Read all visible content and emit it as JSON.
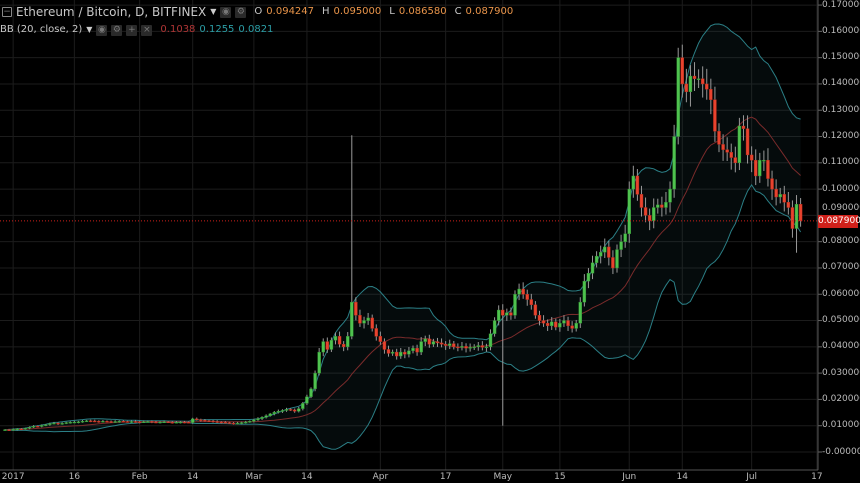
{
  "header": {
    "title": "Ethereum / Bitcoin, D, BITFINEX",
    "ohlc": {
      "o_label": "O",
      "o": "0.094247",
      "h_label": "H",
      "h": "0.095000",
      "l_label": "L",
      "l": "0.086580",
      "c_label": "C",
      "c": "0.087900"
    },
    "indicator": {
      "label": "BB (20, close, 2)",
      "basis": "0.1038",
      "upper": "0.1255",
      "lower": "0.0821"
    }
  },
  "colors": {
    "up": "#4fc24f",
    "down": "#e8432e",
    "bb_band": "#2b7f86",
    "bb_basis": "#7a2b2b",
    "price_label": "#d0201a",
    "grid": "#1c1c1c"
  },
  "chart_data": {
    "type": "candlestick",
    "title": "Ethereum / Bitcoin, D, BITFINEX",
    "ylim": [
      -0.003,
      0.172
    ],
    "yticks": [
      "0.170000",
      "0.160000",
      "0.150000",
      "0.140000",
      "0.130000",
      "0.120000",
      "0.110000",
      "0.100000",
      "0.090000",
      "0.080000",
      "0.070000",
      "0.060000",
      "0.050000",
      "0.040000",
      "0.030000",
      "0.020000",
      "0.010000",
      "-0.000000"
    ],
    "xticks": [
      "2017",
      "16",
      "Feb",
      "14",
      "Mar",
      "14",
      "Apr",
      "17",
      "May",
      "15",
      "Jun",
      "14",
      "Jul",
      "17"
    ],
    "first_open": 0.0084,
    "closes": [
      0.0085,
      0.0083,
      0.0086,
      0.0088,
      0.0087,
      0.009,
      0.0094,
      0.0098,
      0.0097,
      0.0101,
      0.0104,
      0.0108,
      0.011,
      0.0107,
      0.0109,
      0.0112,
      0.0113,
      0.0114,
      0.0115,
      0.0117,
      0.0119,
      0.0118,
      0.0117,
      0.0116,
      0.0117,
      0.0116,
      0.0115,
      0.0116,
      0.0117,
      0.0116,
      0.0115,
      0.0116,
      0.0115,
      0.0114,
      0.0115,
      0.0116,
      0.0114,
      0.0113,
      0.0114,
      0.0115,
      0.0113,
      0.0112,
      0.0113,
      0.0114,
      0.0113,
      0.0112,
      0.0126,
      0.0123,
      0.0121,
      0.0119,
      0.0118,
      0.0116,
      0.0114,
      0.0113,
      0.0112,
      0.011,
      0.0108,
      0.011,
      0.0112,
      0.0114,
      0.0117,
      0.0122,
      0.0127,
      0.0132,
      0.0138,
      0.0145,
      0.0151,
      0.0155,
      0.0158,
      0.0162,
      0.016,
      0.0155,
      0.0165,
      0.0185,
      0.021,
      0.024,
      0.03,
      0.038,
      0.042,
      0.039,
      0.0425,
      0.044,
      0.041,
      0.04,
      0.044,
      0.057,
      0.052,
      0.049,
      0.05,
      0.051,
      0.047,
      0.044,
      0.042,
      0.039,
      0.0375,
      0.038,
      0.0365,
      0.038,
      0.0372,
      0.0385,
      0.0395,
      0.038,
      0.042,
      0.043,
      0.041,
      0.042,
      0.0415,
      0.041,
      0.0405,
      0.0412,
      0.04,
      0.0398,
      0.0402,
      0.0395,
      0.0398,
      0.04,
      0.0405,
      0.0398,
      0.04,
      0.045,
      0.05,
      0.054,
      0.052,
      0.053,
      0.052,
      0.06,
      0.062,
      0.06,
      0.058,
      0.056,
      0.052,
      0.05,
      0.049,
      0.048,
      0.0495,
      0.0475,
      0.049,
      0.05,
      0.048,
      0.047,
      0.049,
      0.057,
      0.065,
      0.068,
      0.072,
      0.0745,
      0.076,
      0.078,
      0.074,
      0.07,
      0.077,
      0.08,
      0.083,
      0.1,
      0.105,
      0.098,
      0.093,
      0.09,
      0.088,
      0.093,
      0.094,
      0.093,
      0.095,
      0.1,
      0.12,
      0.15,
      0.14,
      0.137,
      0.143,
      0.142,
      0.142,
      0.14,
      0.138,
      0.134,
      0.122,
      0.117,
      0.115,
      0.114,
      0.112,
      0.11,
      0.124,
      0.123,
      0.113,
      0.111,
      0.105,
      0.111,
      0.111,
      0.104,
      0.1,
      0.097,
      0.098,
      0.095,
      0.093,
      0.085,
      0.094247,
      0.0879
    ],
    "wick_extremes": [
      {
        "candle": 85,
        "high": 0.1205
      },
      {
        "candle": 122,
        "low": 0.01
      },
      {
        "candle": 194,
        "low": 0.0758
      }
    ],
    "indicator": {
      "type": "bollinger",
      "period": 20,
      "stddev": 2
    },
    "last_price": "0.087900",
    "grid": true
  }
}
